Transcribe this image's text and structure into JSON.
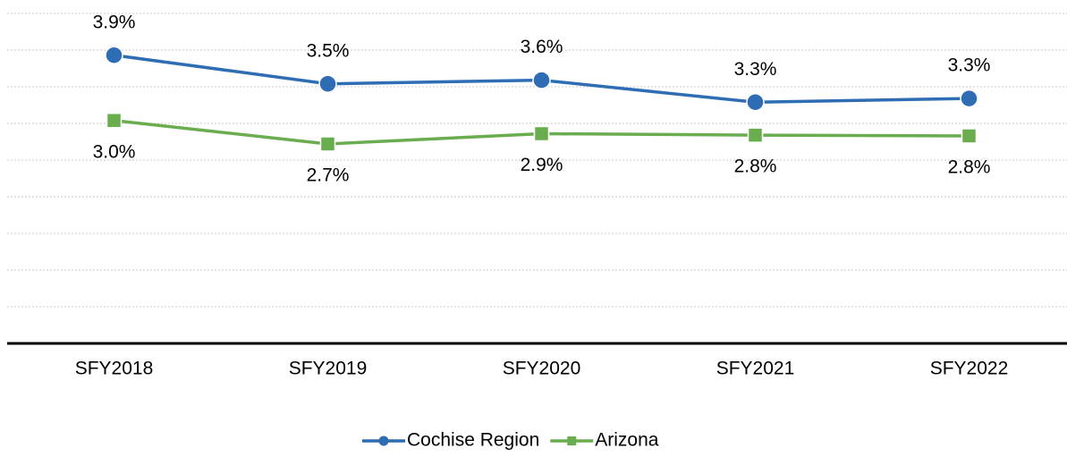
{
  "chart_data": {
    "type": "line",
    "categories": [
      "SFY2018",
      "SFY2019",
      "SFY2020",
      "SFY2021",
      "SFY2022"
    ],
    "series": [
      {
        "name": "Cochise Region",
        "color": "#2e6db4",
        "marker": "circle",
        "values": [
          3.93,
          3.54,
          3.59,
          3.29,
          3.34
        ],
        "value_labels": [
          "3.9%",
          "3.5%",
          "3.6%",
          "3.3%",
          "3.3%"
        ]
      },
      {
        "name": "Arizona",
        "color": "#6aad4f",
        "marker": "square",
        "values": [
          3.04,
          2.72,
          2.86,
          2.84,
          2.83
        ],
        "value_labels": [
          "3.0%",
          "2.7%",
          "2.9%",
          "2.8%",
          "2.8%"
        ]
      }
    ],
    "ylim": [
      0,
      4.5
    ],
    "yticks": [
      0,
      0.5,
      1,
      1.5,
      2,
      2.5,
      3,
      3.5,
      4,
      4.5
    ],
    "grid": true,
    "legend": "bottom"
  }
}
